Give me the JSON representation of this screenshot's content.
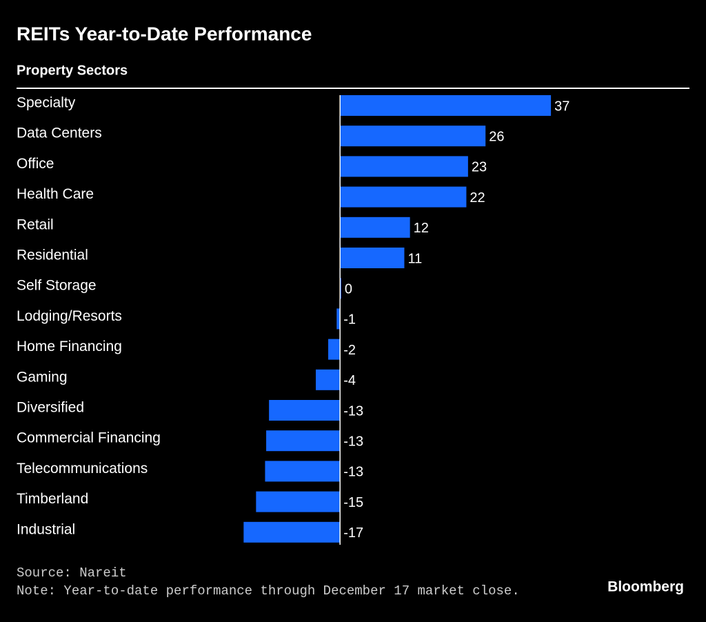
{
  "chart_data": {
    "type": "barh",
    "title": "REITs Year-to-Date Performance",
    "subtitle": "Property Sectors",
    "categories": [
      "Specialty",
      "Data Centers",
      "Office",
      "Health Care",
      "Retail",
      "Residential",
      "Self Storage",
      "Lodging/Resorts",
      "Home Financing",
      "Gaming",
      "Diversified",
      "Commercial Financing",
      "Telecommunications",
      "Timberland",
      "Industrial"
    ],
    "values": [
      37.4,
      25.8,
      22.7,
      22.4,
      12.4,
      11.4,
      0.2,
      -0.6,
      -2.1,
      -4.3,
      -12.6,
      -13.1,
      -13.3,
      -14.9,
      -17.1
    ],
    "value_labels": [
      "37",
      "26",
      "23",
      "22",
      "12",
      "11",
      "0",
      "-1",
      "-2",
      "-4",
      "-13",
      "-13",
      "-13",
      "-15",
      "-17"
    ],
    "color": "#1668ff",
    "xlim": [
      -18,
      38
    ],
    "source": "Source: Nareit",
    "note": "Note: Year-to-date performance through December 17 market close.",
    "brand": "Bloomberg"
  }
}
